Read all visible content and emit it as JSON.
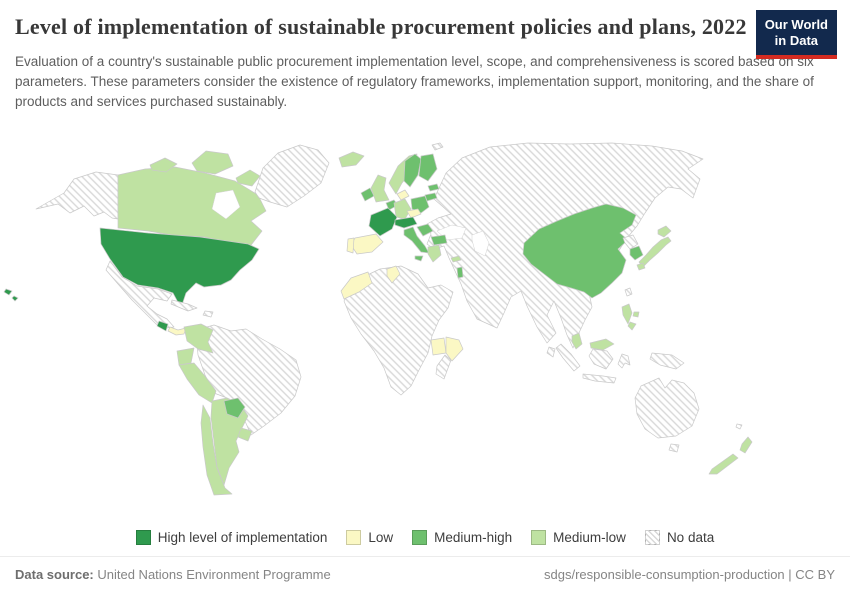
{
  "header": {
    "title": "Level of implementation of sustainable procurement policies and plans, 2022",
    "subtitle": "Evaluation of a country's sustainable public procurement implementation level, scope, and comprehensiveness is scored based on six parameters. These parameters consider the existence of regulatory frameworks, implementation support, monitoring, and the share of products and services purchased sustainably.",
    "logo": {
      "line1": "Our World",
      "line2": "in Data",
      "bg_color": "#12294d",
      "accent_color": "#d42b21"
    }
  },
  "colors": {
    "high": "#2f9a4e",
    "medium_high": "#6ec06e",
    "medium_low": "#bfe2a2",
    "low": "#fbf8c4",
    "no_data_hatch_line": "#d8d8d8",
    "country_border": "#c9c9c9",
    "ocean": "#ffffff"
  },
  "legend": {
    "items": [
      {
        "label": "High level of implementation",
        "category": "high"
      },
      {
        "label": "Low",
        "category": "low"
      },
      {
        "label": "Medium-high",
        "category": "medium_high"
      },
      {
        "label": "Medium-low",
        "category": "medium_low"
      },
      {
        "label": "No data",
        "category": "no_data"
      }
    ]
  },
  "chart_data": {
    "type": "choropleth_map",
    "title": "Level of implementation of sustainable procurement policies and plans",
    "year": "2022",
    "legend_position": "bottom",
    "categories": [
      "High level of implementation",
      "Medium-high",
      "Medium-low",
      "Low",
      "No data"
    ],
    "countries_by_category": {
      "high": [
        "United States",
        "France",
        "Switzerland",
        "Austria",
        "Costa Rica"
      ],
      "medium_high": [
        "China",
        "South Korea",
        "Sweden",
        "Finland",
        "Ireland",
        "Poland",
        "Italy",
        "Bulgaria",
        "Croatia",
        "Estonia",
        "Lithuania",
        "Netherlands",
        "Belgium",
        "Paraguay",
        "Israel"
      ],
      "medium_low": [
        "Canada",
        "United Kingdom",
        "Norway",
        "Iceland",
        "Germany",
        "Greece",
        "Cyprus",
        "Japan",
        "Philippines",
        "Malaysia",
        "New Zealand",
        "Colombia",
        "Ecuador",
        "Peru",
        "Chile",
        "Argentina",
        "Uruguay"
      ],
      "low": [
        "Spain",
        "Portugal",
        "Denmark",
        "Czechia",
        "Morocco",
        "Tunisia",
        "Uganda",
        "Kenya",
        "Panama"
      ],
      "no_data_note": "All remaining countries (e.g. Russia, India, Brazil, Mexico, Australia, Greenland, most of Africa and Asia) shown with gray diagonal hatching"
    }
  },
  "footer": {
    "source_label": "Data source:",
    "source_value": " United Nations Environment Programme",
    "right_text": "sdgs/responsible-consumption-production | CC BY"
  }
}
